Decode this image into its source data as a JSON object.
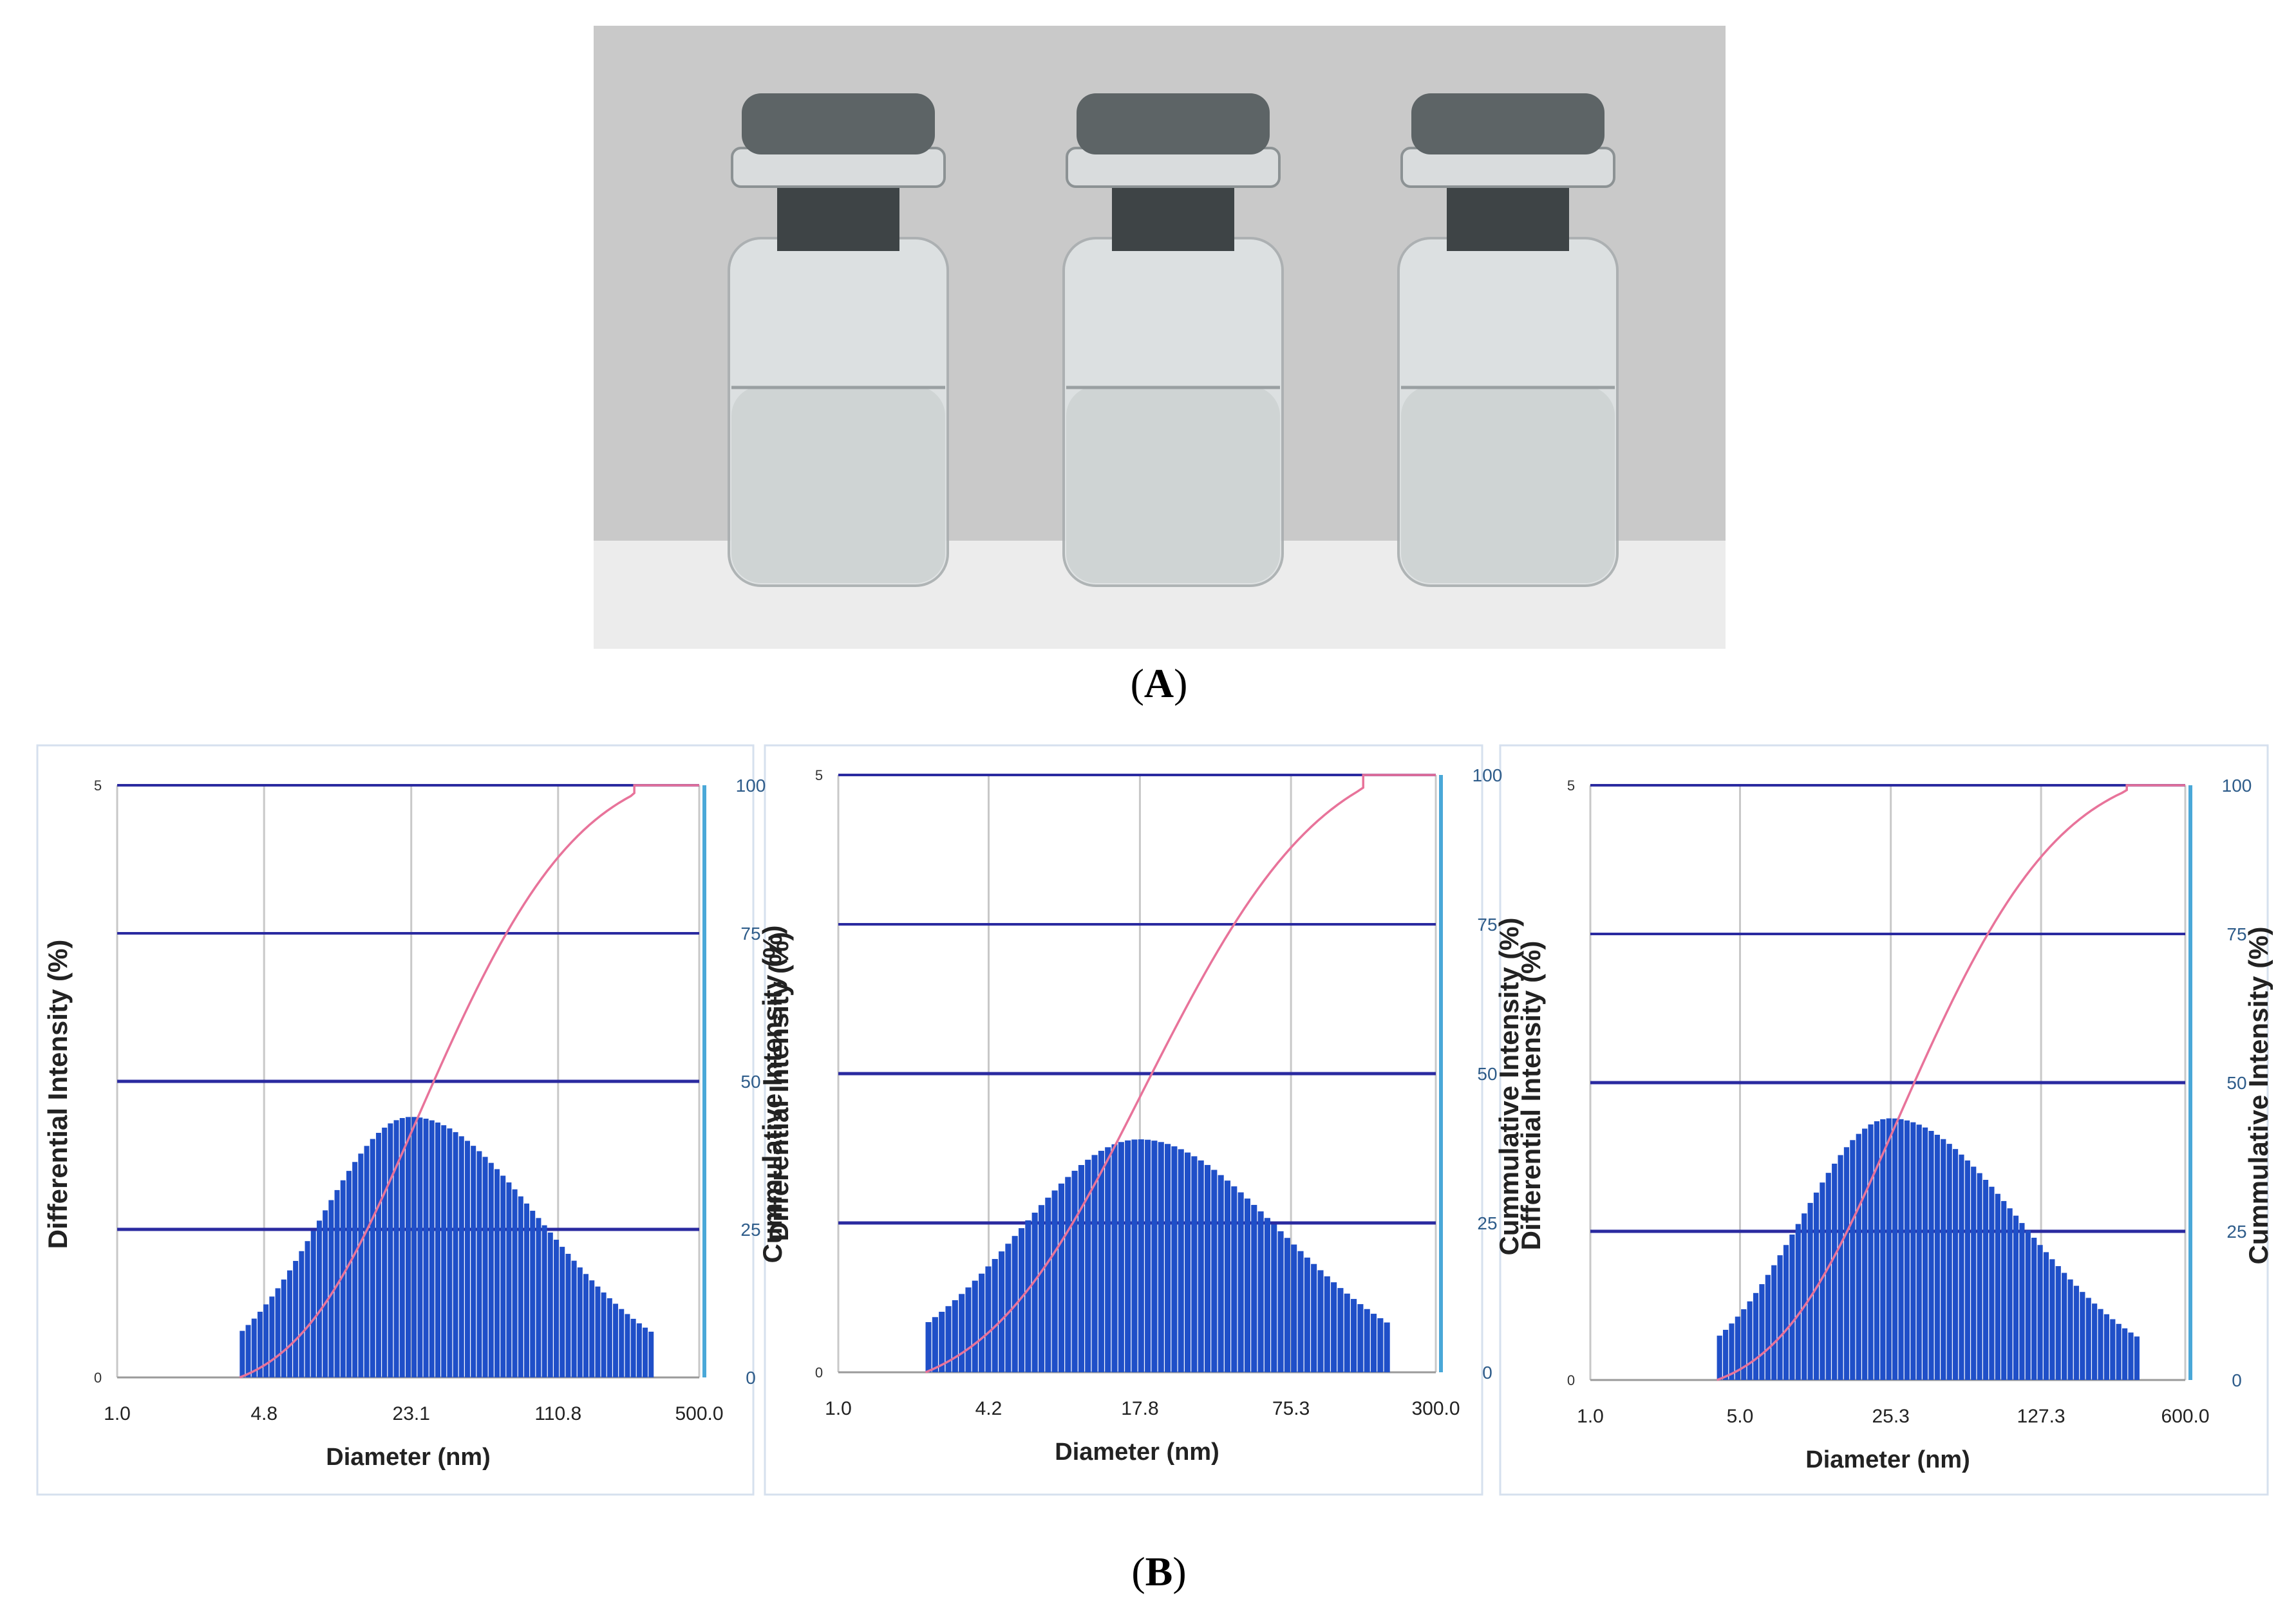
{
  "figure": {
    "panel_a_label_open": "(",
    "panel_a_label_letter": "A",
    "panel_a_label_close": ")",
    "panel_b_label_open": "(",
    "panel_b_label_letter": "B",
    "panel_b_label_close": ")"
  },
  "photo": {
    "vial_count": 3,
    "colors": {
      "wall": "#c9c9c9",
      "table": "#ececec",
      "cap": "#5d6466",
      "glass": "#dfe3e4",
      "liquid": "#cfd4d4"
    }
  },
  "colors": {
    "bar": "#1f4fc8",
    "cumulative_line": "#e8739a",
    "gridline_h": "#2a2aa0",
    "gridline_v": "#c8c8c8",
    "right_axis": "#4aa8d8",
    "right_tick_text": "#2e5c8a"
  },
  "chart_data": [
    {
      "type": "bar",
      "x_scale": "log",
      "x_ticks": [
        "1.0",
        "4.8",
        "23.1",
        "110.8",
        "500.0"
      ],
      "xlim": [
        1.0,
        500.0
      ],
      "xlabel": "Diameter (nm)",
      "ylabel": "Differential Intensity (%)",
      "y_ticks": [
        "0",
        "5"
      ],
      "ylim": [
        0,
        5
      ],
      "y2label": "Cummulative Intensity (%)",
      "y2_ticks": [
        "0",
        "25",
        "50",
        "75",
        "100"
      ],
      "y2lim": [
        0,
        100
      ],
      "grid": true,
      "differential": {
        "x_min": 3.7,
        "x_max": 310,
        "peak_x": 23.1,
        "peak_value": 2.2,
        "edge_value": 0.37
      },
      "cumulative_end_x": 250
    },
    {
      "type": "bar",
      "x_scale": "log",
      "x_ticks": [
        "1.0",
        "4.2",
        "17.8",
        "75.3",
        "300.0"
      ],
      "xlim": [
        1.0,
        300.0
      ],
      "xlabel": "Diameter (nm)",
      "ylabel": "Differential Intensity (%)",
      "y_ticks": [
        "0",
        "5"
      ],
      "ylim": [
        0,
        5
      ],
      "y2label": "Cummulative Intensity (%)",
      "y2_ticks": [
        "0",
        "25",
        "50",
        "75",
        "100"
      ],
      "y2lim": [
        0,
        100
      ],
      "grid": true,
      "differential": {
        "x_min": 2.3,
        "x_max": 195,
        "peak_x": 17.8,
        "peak_value": 1.95,
        "edge_value": 0.4
      },
      "cumulative_end_x": 150
    },
    {
      "type": "bar",
      "x_scale": "log",
      "x_ticks": [
        "1.0",
        "5.0",
        "25.3",
        "127.3",
        "600.0"
      ],
      "xlim": [
        1.0,
        600.0
      ],
      "xlabel": "Diameter (nm)",
      "ylabel": "Differential Intensity (%)",
      "y_ticks": [
        "0",
        "5"
      ],
      "ylim": [
        0,
        5
      ],
      "y2label": "Cummulative Intensity (%)",
      "y2_ticks": [
        "0",
        "25",
        "50",
        "75",
        "100"
      ],
      "y2lim": [
        0,
        100
      ],
      "grid": true,
      "differential": {
        "x_min": 3.9,
        "x_max": 370,
        "peak_x": 25.3,
        "peak_value": 2.2,
        "edge_value": 0.35
      },
      "cumulative_end_x": 320
    }
  ]
}
